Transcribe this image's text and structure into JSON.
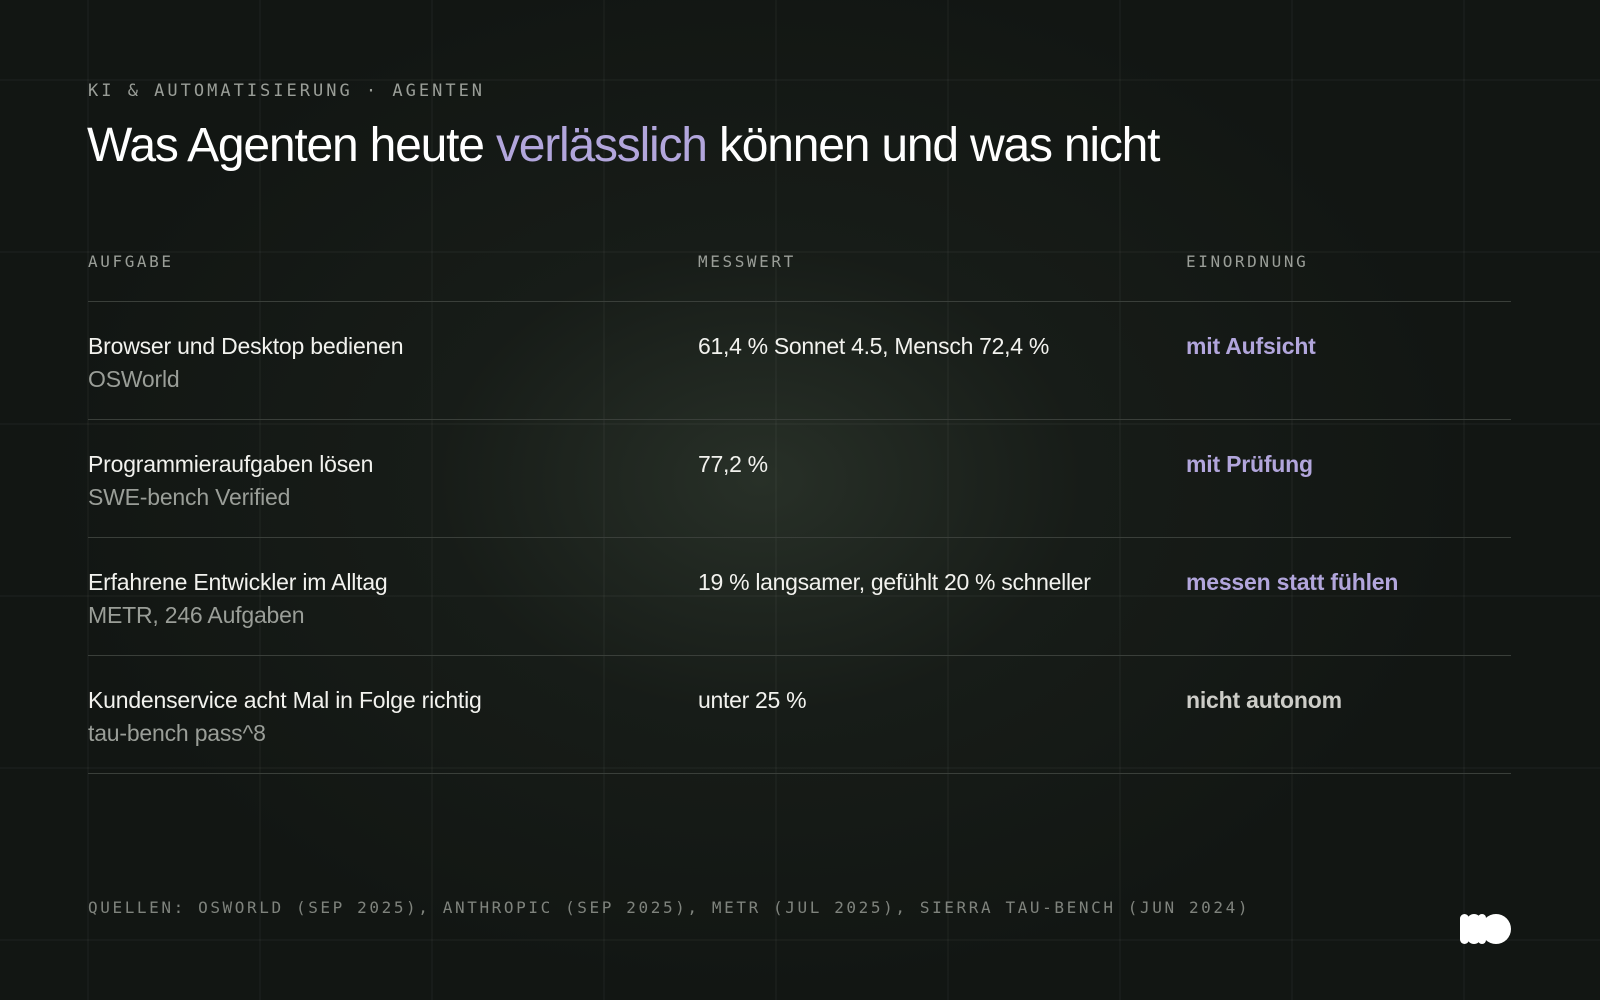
{
  "header": {
    "kicker": "KI & AUTOMATISIERUNG · AGENTEN",
    "title_before": "Was Agenten heute ",
    "title_accent": "verlässlich",
    "title_after": " können und was nicht"
  },
  "table": {
    "columns": [
      "AUFGABE",
      "MESSWERT",
      "EINORDNUNG"
    ],
    "rows": [
      {
        "task": "Browser und Desktop bedienen",
        "source": "OSWorld",
        "metric": "61,4 % Sonnet 4.5, Mensch 72,4 %",
        "rating": "mit Aufsicht"
      },
      {
        "task": "Programmieraufgaben lösen",
        "source": "SWE-bench Verified",
        "metric": "77,2 %",
        "rating": "mit Prüfung"
      },
      {
        "task": "Erfahrene Entwickler im Alltag",
        "source": "METR, 246 Aufgaben",
        "metric": "19 % langsamer, gefühlt 20 % schneller",
        "rating": "messen statt fühlen"
      },
      {
        "task": "Kundenservice acht Mal in Folge richtig",
        "source": "tau-bench pass^8",
        "metric": "unter 25 %",
        "rating": "nicht autonom"
      }
    ]
  },
  "footer": {
    "sources": "QUELLEN: OSWORLD (SEP 2025), ANTHROPIC (SEP 2025), METR (JUL 2025), SIERRA TAU-BENCH (JUN 2024)",
    "logo_icon": "brand-logo-icon"
  },
  "colors": {
    "background": "#121613",
    "accent": "#b2a6dc",
    "text": "#f2f2ee",
    "muted": "#9a9e98",
    "neutral_rating": "#cdcdc8"
  }
}
